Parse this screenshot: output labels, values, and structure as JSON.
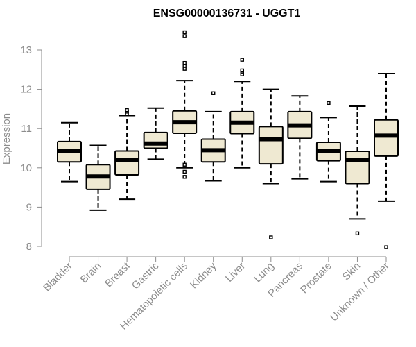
{
  "chart_data": {
    "type": "boxplot",
    "title": "ENSG00000136731 - UGGT1",
    "xlabel": "",
    "ylabel": "Expression",
    "ylim": [
      8,
      13
    ],
    "yticks": [
      "8",
      "9",
      "10",
      "11",
      "12",
      "13"
    ],
    "colors": {
      "box_fill": "#efe9d2",
      "box_stroke": "#000000",
      "median": "#000000",
      "axis": "#8c8c8c"
    },
    "categories": [
      "Bladder",
      "Brain",
      "Breast",
      "Gastric",
      "Hematopoietic cells",
      "Kidney",
      "Liver",
      "Lung",
      "Pancreas",
      "Prostate",
      "Skin",
      "Unknown / Other"
    ],
    "boxes": [
      {
        "label": "Bladder",
        "whisker_low": 9.65,
        "q1": 10.15,
        "median": 10.42,
        "q3": 10.67,
        "whisker_high": 11.15,
        "outliers": []
      },
      {
        "label": "Brain",
        "whisker_low": 8.92,
        "q1": 9.45,
        "median": 9.78,
        "q3": 10.08,
        "whisker_high": 10.57,
        "outliers": []
      },
      {
        "label": "Breast",
        "whisker_low": 9.2,
        "q1": 9.82,
        "median": 10.2,
        "q3": 10.43,
        "whisker_high": 11.33,
        "outliers": [
          11.38,
          11.43,
          11.47
        ]
      },
      {
        "label": "Gastric",
        "whisker_low": 10.22,
        "q1": 10.5,
        "median": 10.62,
        "q3": 10.9,
        "whisker_high": 11.52,
        "outliers": []
      },
      {
        "label": "Hematopoietic cells",
        "whisker_low": 10.0,
        "q1": 10.88,
        "median": 11.16,
        "q3": 11.45,
        "whisker_high": 12.22,
        "outliers": [
          9.77,
          9.9,
          10.08,
          12.52,
          12.6,
          12.67,
          13.35,
          13.45
        ]
      },
      {
        "label": "Kidney",
        "whisker_low": 9.67,
        "q1": 10.15,
        "median": 10.45,
        "q3": 10.73,
        "whisker_high": 11.43,
        "outliers": [
          11.9
        ]
      },
      {
        "label": "Liver",
        "whisker_low": 10.0,
        "q1": 10.87,
        "median": 11.15,
        "q3": 11.43,
        "whisker_high": 12.2,
        "outliers": [
          12.38,
          12.45,
          12.48,
          12.75
        ]
      },
      {
        "label": "Lung",
        "whisker_low": 9.6,
        "q1": 10.1,
        "median": 10.73,
        "q3": 11.05,
        "whisker_high": 12.0,
        "outliers": [
          8.23
        ]
      },
      {
        "label": "Pancreas",
        "whisker_low": 9.72,
        "q1": 10.75,
        "median": 11.08,
        "q3": 11.43,
        "whisker_high": 11.83,
        "outliers": []
      },
      {
        "label": "Prostate",
        "whisker_low": 9.65,
        "q1": 10.18,
        "median": 10.42,
        "q3": 10.65,
        "whisker_high": 11.28,
        "outliers": [
          11.65
        ]
      },
      {
        "label": "Skin",
        "whisker_low": 8.7,
        "q1": 9.6,
        "median": 10.2,
        "q3": 10.42,
        "whisker_high": 11.57,
        "outliers": [
          8.33
        ]
      },
      {
        "label": "Unknown / Other",
        "whisker_low": 9.15,
        "q1": 10.3,
        "median": 10.82,
        "q3": 11.22,
        "whisker_high": 12.4,
        "outliers": [
          7.98
        ]
      }
    ]
  }
}
